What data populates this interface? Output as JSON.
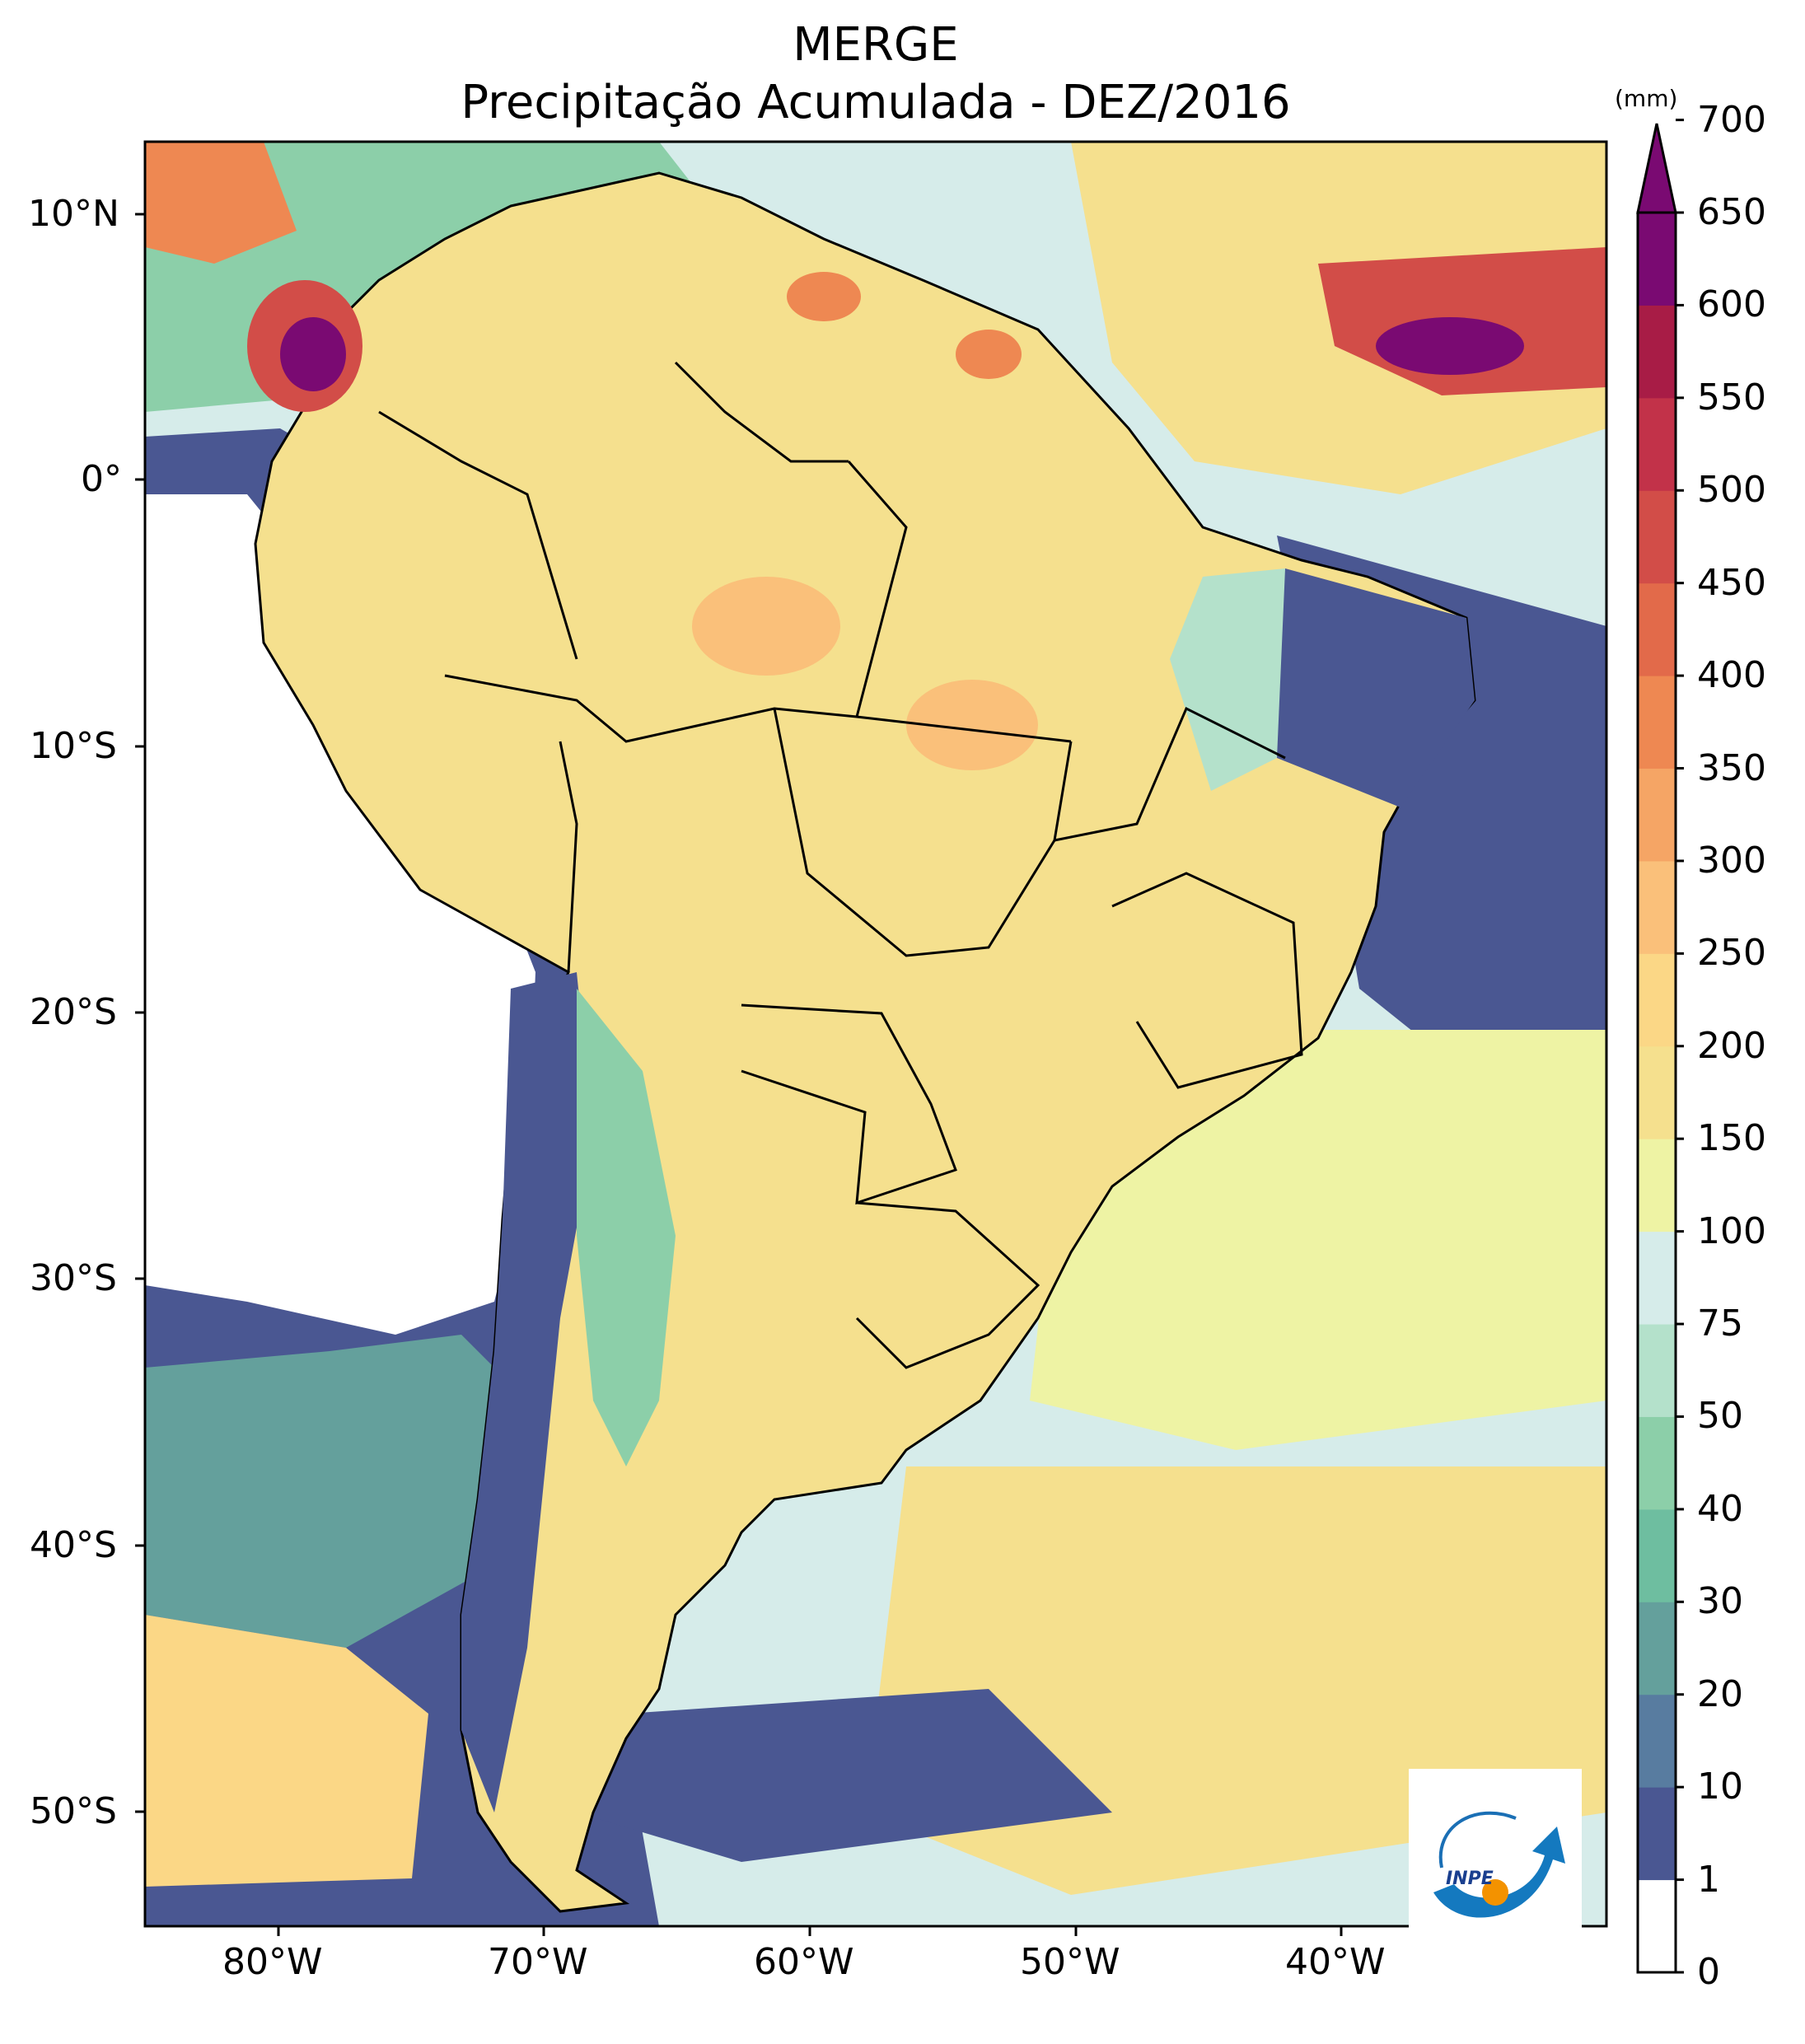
{
  "title_line1": "MERGE",
  "title_line2": "Precipitação Acumulada - DEZ/2016",
  "unit": "(mm)",
  "lat_ticks": [
    "10°N",
    "0°",
    "10°S",
    "20°S",
    "30°S",
    "40°S",
    "50°S"
  ],
  "lon_ticks": [
    "80°W",
    "70°W",
    "60°W",
    "50°W",
    "40°W"
  ],
  "colorbar": {
    "levels": [
      "0",
      "1",
      "10",
      "20",
      "30",
      "40",
      "50",
      "75",
      "100",
      "150",
      "200",
      "250",
      "300",
      "350",
      "400",
      "450",
      "500",
      "550",
      "600",
      "650",
      "700"
    ],
    "colors": [
      "#ffffff",
      "#4a5792",
      "#587ca0",
      "#64a09c",
      "#6ebea0",
      "#8ccfa9",
      "#b4e1cb",
      "#d6ecea",
      "#eef3a4",
      "#f5e08e",
      "#fbd786",
      "#fac07a",
      "#f5a565",
      "#ee8852",
      "#e26a4a",
      "#d24d48",
      "#c23249",
      "#a81c46",
      "#7a0a72"
    ],
    "extend_color": "#7a0a72"
  },
  "logo_text": "INPE",
  "extent": {
    "lon": [
      -85,
      -30
    ],
    "lat": [
      -57,
      12.5
    ]
  },
  "palette": {
    "ocean_low": "#4a5792",
    "land": "#f5e08e",
    "coast": "#000000"
  }
}
